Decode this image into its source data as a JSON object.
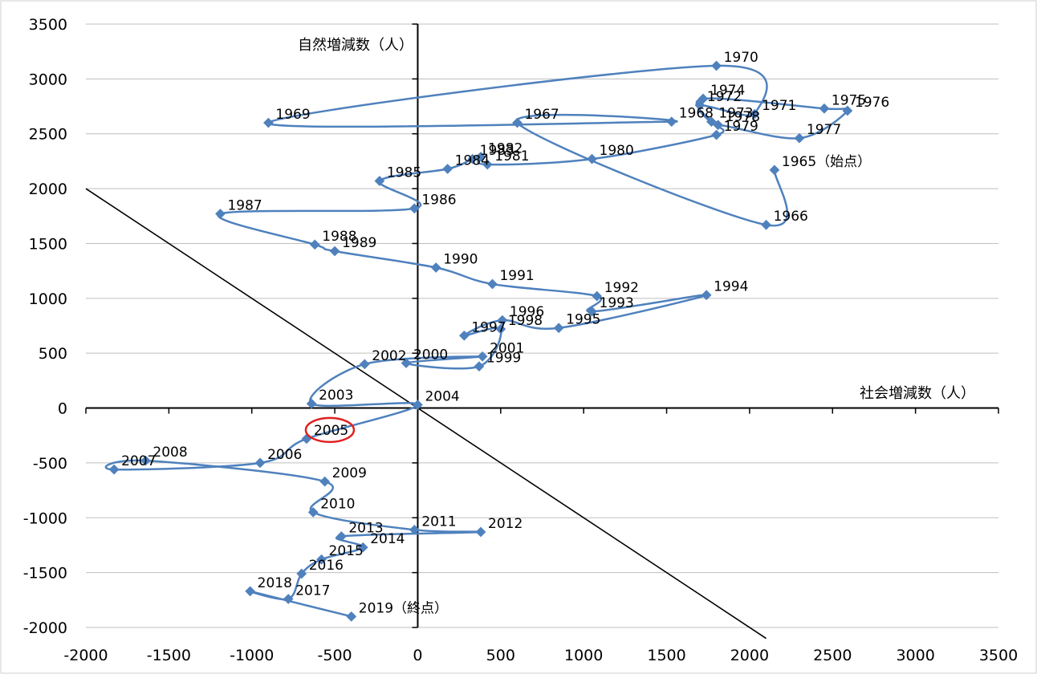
{
  "chart_data": {
    "type": "scatter",
    "title": "",
    "xlabel": "社会増減数（人）",
    "ylabel": "自然増減数（人）",
    "xlim": [
      -2000,
      3500
    ],
    "ylim": [
      -2000,
      3500
    ],
    "xticks": [
      -2000,
      -1500,
      -1000,
      -500,
      0,
      500,
      1000,
      1500,
      2000,
      2500,
      3000,
      3500
    ],
    "yticks": [
      -2000,
      -1500,
      -1000,
      -500,
      0,
      500,
      1000,
      1500,
      2000,
      2500,
      3000,
      3500
    ],
    "grid": "horizontal",
    "colors": {
      "series": "#4f81bd",
      "reference_line": "#000000",
      "highlight": "#e02020"
    },
    "reference_line": {
      "from": [
        -2000,
        2000
      ],
      "to": [
        2100,
        -2100
      ]
    },
    "highlight_label": "2005",
    "series": [
      {
        "points": [
          {
            "label": "1965（始点）",
            "x": 2150,
            "y": 2170
          },
          {
            "label": "1966",
            "x": 2100,
            "y": 1670
          },
          {
            "label": "1967",
            "x": 600,
            "y": 2600
          },
          {
            "label": "1968",
            "x": 1530,
            "y": 2610
          },
          {
            "label": "1969",
            "x": -900,
            "y": 2600
          },
          {
            "label": "1970",
            "x": 1800,
            "y": 3120
          },
          {
            "label": "1971",
            "x": 2030,
            "y": 2680
          },
          {
            "label": "1972",
            "x": 1700,
            "y": 2760
          },
          {
            "label": "1973",
            "x": 1770,
            "y": 2610
          },
          {
            "label": "1974",
            "x": 1720,
            "y": 2820
          },
          {
            "label": "1975",
            "x": 2450,
            "y": 2730
          },
          {
            "label": "1976",
            "x": 2590,
            "y": 2710
          },
          {
            "label": "1977",
            "x": 2300,
            "y": 2460
          },
          {
            "label": "1978",
            "x": 1810,
            "y": 2580
          },
          {
            "label": "1979",
            "x": 1800,
            "y": 2490
          },
          {
            "label": "1980",
            "x": 1050,
            "y": 2270
          },
          {
            "label": "1981",
            "x": 420,
            "y": 2220
          },
          {
            "label": "1982",
            "x": 380,
            "y": 2290
          },
          {
            "label": "1983",
            "x": 330,
            "y": 2270
          },
          {
            "label": "1984",
            "x": 180,
            "y": 2180
          },
          {
            "label": "1985",
            "x": -230,
            "y": 2070
          },
          {
            "label": "1986",
            "x": -20,
            "y": 1820
          },
          {
            "label": "1987",
            "x": -1190,
            "y": 1770
          },
          {
            "label": "1988",
            "x": -620,
            "y": 1490
          },
          {
            "label": "1989",
            "x": -500,
            "y": 1430
          },
          {
            "label": "1990",
            "x": 110,
            "y": 1280
          },
          {
            "label": "1991",
            "x": 450,
            "y": 1130
          },
          {
            "label": "1992",
            "x": 1080,
            "y": 1020
          },
          {
            "label": "1993",
            "x": 1050,
            "y": 880
          },
          {
            "label": "1994",
            "x": 1740,
            "y": 1030
          },
          {
            "label": "1995",
            "x": 850,
            "y": 730
          },
          {
            "label": "1996",
            "x": 510,
            "y": 800
          },
          {
            "label": "1997",
            "x": 280,
            "y": 660
          },
          {
            "label": "1998",
            "x": 500,
            "y": 720
          },
          {
            "label": "1999",
            "x": 370,
            "y": 380
          },
          {
            "label": "2000",
            "x": -70,
            "y": 410
          },
          {
            "label": "2001",
            "x": 390,
            "y": 470
          },
          {
            "label": "2002",
            "x": -320,
            "y": 400
          },
          {
            "label": "2003",
            "x": -640,
            "y": 40
          },
          {
            "label": "2004",
            "x": 0,
            "y": 30
          },
          {
            "label": "2005",
            "x": -670,
            "y": -280
          },
          {
            "label": "2006",
            "x": -950,
            "y": -500
          },
          {
            "label": "2007",
            "x": -1830,
            "y": -560
          },
          {
            "label": "2008",
            "x": -1640,
            "y": -480
          },
          {
            "label": "2009",
            "x": -560,
            "y": -670
          },
          {
            "label": "2010",
            "x": -630,
            "y": -950
          },
          {
            "label": "2011",
            "x": -20,
            "y": -1110
          },
          {
            "label": "2012",
            "x": 380,
            "y": -1130
          },
          {
            "label": "2013",
            "x": -460,
            "y": -1170
          },
          {
            "label": "2014",
            "x": -330,
            "y": -1270
          },
          {
            "label": "2015",
            "x": -580,
            "y": -1380
          },
          {
            "label": "2016",
            "x": -700,
            "y": -1510
          },
          {
            "label": "2017",
            "x": -780,
            "y": -1740
          },
          {
            "label": "2018",
            "x": -1010,
            "y": -1670
          },
          {
            "label": "2019（終点）",
            "x": -400,
            "y": -1900
          }
        ]
      }
    ]
  }
}
